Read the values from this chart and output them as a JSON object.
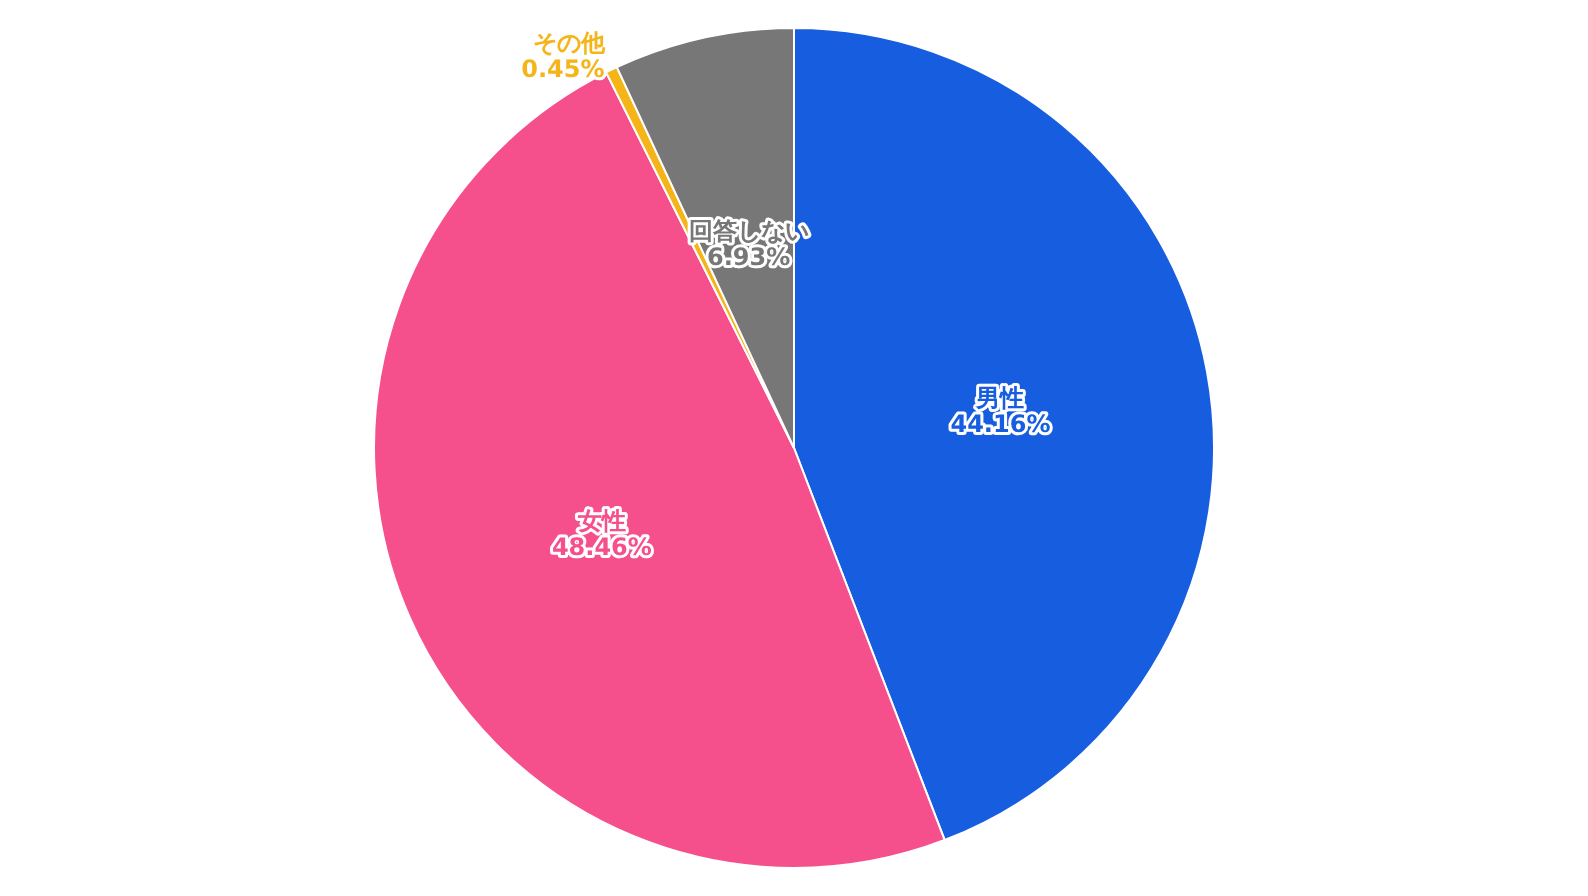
{
  "chart_data": {
    "type": "pie",
    "categories": [
      "男性",
      "女性",
      "その他",
      "回答しない"
    ],
    "values": [
      44.16,
      48.46,
      0.45,
      6.93
    ],
    "colors": [
      "#165de0",
      "#f5508c",
      "#f5b418",
      "#777777"
    ],
    "value_labels": [
      "44.16%",
      "48.46%",
      "0.45%",
      "6.93%"
    ]
  }
}
